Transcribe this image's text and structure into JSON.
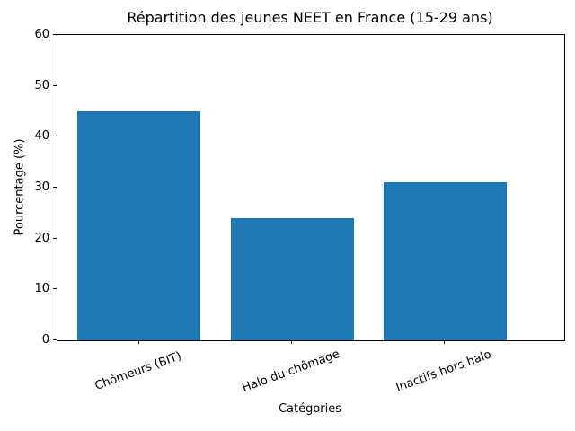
{
  "chart_data": {
    "type": "bar",
    "title": "Répartition des jeunes NEET en France (15-29 ans)",
    "xlabel": "Catégories",
    "ylabel": "Pourcentage (%)",
    "categories": [
      "Chômeurs (BIT)",
      "Halo du chômage",
      "Inactifs hors halo"
    ],
    "values": [
      45,
      24,
      31
    ],
    "ylim": [
      0,
      60
    ],
    "yticks": [
      0,
      10,
      20,
      30,
      40,
      50,
      60
    ],
    "bar_color": "#1f77b4",
    "grid": "off",
    "legend": "none"
  }
}
